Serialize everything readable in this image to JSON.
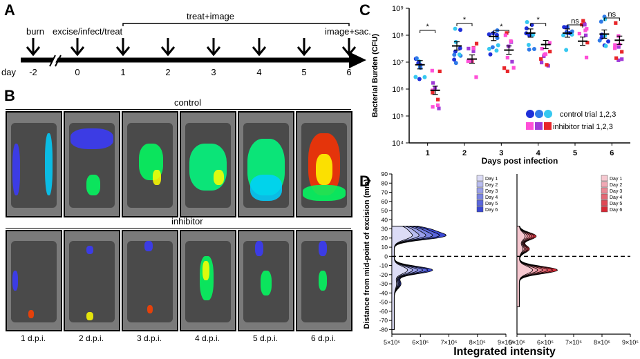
{
  "panels": {
    "a": "A",
    "b": "B",
    "c": "C",
    "d": "D"
  },
  "timeline": {
    "day_label": "day",
    "ticks": [
      "-2",
      "0",
      "1",
      "2",
      "3",
      "4",
      "5",
      "6"
    ],
    "events": {
      "burn": "burn",
      "excise": "excise/infect/treat",
      "treat": "treat+image",
      "final": "image+sac."
    }
  },
  "panel_b": {
    "control_label": "control",
    "inhibitor_label": "inhibitor",
    "captions": [
      "1 d.p.i.",
      "2 d.p.i.",
      "3 d.p.i.",
      "4 d.p.i.",
      "5 d.p.i.",
      "6 d.p.i."
    ]
  },
  "chart_data": [
    {
      "type": "scatter",
      "ylabel": "Bacterial Burden (CFU)",
      "xlabel": "Days post infection",
      "y_scale": "log",
      "ylim": [
        10000,
        1000000000
      ],
      "y_ticks": [
        "10⁴",
        "10⁵",
        "10⁶",
        "10⁷",
        "10⁸",
        "10⁹"
      ],
      "categories": [
        "1",
        "2",
        "3",
        "4",
        "5",
        "6"
      ],
      "significance": [
        "*",
        "*",
        "*",
        "*",
        "ns",
        "ns"
      ],
      "legend": {
        "control": "control trial 1,2,3",
        "inhibitor": "inhibitor trial 1,2,3"
      },
      "colors": {
        "control": [
          "#1f2fd8",
          "#2f7ae8",
          "#36c8f0"
        ],
        "inhibitor": [
          "#ff4fd8",
          "#a03ad8",
          "#e8262a"
        ]
      },
      "control_mean": [
        8000000,
        40000000,
        90000000,
        120000000,
        120000000,
        110000000
      ],
      "inhibitor_mean": [
        900000,
        13000000,
        28000000,
        45000000,
        60000000,
        65000000
      ]
    },
    {
      "type": "area",
      "xlabel": "Integrated intensity",
      "ylabel": "Distance from mid-point of excision (mm)",
      "x_ticks": [
        "5×10⁵",
        "6×10⁵",
        "7×10⁵",
        "8×10⁵",
        "9×10⁵"
      ],
      "xlim": [
        500000,
        900000
      ],
      "y_ticks": [
        "90",
        "80",
        "70",
        "60",
        "50",
        "40",
        "30",
        "20",
        "10",
        "0",
        "-10",
        "-20",
        "-30",
        "-40",
        "-50",
        "-60",
        "-70",
        "-80"
      ],
      "ylim": [
        -85,
        90
      ],
      "legend": [
        "Day 1",
        "Day 2",
        "Day 3",
        "Day 4",
        "Day 5",
        "Day 6"
      ],
      "control_colors": [
        "#dcdcf6",
        "#b8bcef",
        "#9aa0ea",
        "#7a84e3",
        "#5a66dc",
        "#3a48d4"
      ],
      "inhibitor_colors": [
        "#f6c8d0",
        "#f0a8b4",
        "#ea8894",
        "#e46874",
        "#de4854",
        "#d82834"
      ]
    }
  ]
}
